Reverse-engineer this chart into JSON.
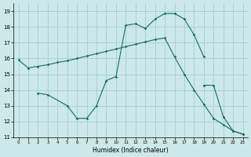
{
  "xlabel": "Humidex (Indice chaleur)",
  "background_color": "#cce8e8",
  "grid_color": "#99cccc",
  "line_color": "#1a6b60",
  "xlim": [
    -0.5,
    23.5
  ],
  "ylim": [
    11,
    19.5
  ],
  "yticks": [
    11,
    12,
    13,
    14,
    15,
    16,
    17,
    18,
    19
  ],
  "xticks": [
    0,
    1,
    2,
    3,
    4,
    5,
    6,
    7,
    8,
    9,
    10,
    11,
    12,
    13,
    14,
    15,
    16,
    17,
    18,
    19,
    20,
    21,
    22,
    23
  ],
  "lines": [
    {
      "x": [
        0,
        1,
        2,
        3,
        4,
        5,
        6,
        7,
        8,
        9,
        10,
        11,
        12,
        13,
        14,
        15,
        16,
        17,
        18,
        19,
        20,
        21,
        22,
        23
      ],
      "y": [
        15.9,
        15.4,
        15.5,
        15.6,
        15.75,
        15.85,
        16.0,
        16.15,
        16.3,
        16.45,
        16.6,
        16.75,
        16.9,
        17.05,
        17.2,
        17.3,
        16.1,
        15.0,
        14.0,
        13.1,
        12.2,
        11.8,
        11.4,
        11.2
      ],
      "markers": [
        0,
        1,
        2,
        3,
        4,
        5,
        6,
        7,
        8,
        9,
        10,
        11,
        12,
        13,
        14,
        15,
        16,
        17,
        18,
        19,
        20,
        21,
        22,
        23
      ]
    },
    {
      "x": [
        2,
        3,
        5,
        6,
        7,
        8,
        9,
        10,
        11,
        12,
        13,
        14,
        15,
        16,
        17,
        18,
        19
      ],
      "y": [
        13.8,
        13.7,
        13.0,
        12.2,
        12.2,
        13.0,
        14.6,
        14.85,
        18.1,
        18.2,
        17.9,
        18.5,
        18.85,
        18.85,
        18.5,
        17.5,
        16.1
      ],
      "markers": [
        2,
        3,
        5,
        6,
        7,
        8,
        9,
        10,
        11,
        12,
        13,
        14,
        15,
        16,
        17,
        18,
        19
      ]
    },
    {
      "x": [
        19,
        20,
        21,
        22,
        23
      ],
      "y": [
        14.3,
        14.3,
        12.3,
        11.4,
        11.2
      ],
      "markers": [
        19,
        20,
        21,
        22,
        23
      ]
    }
  ]
}
